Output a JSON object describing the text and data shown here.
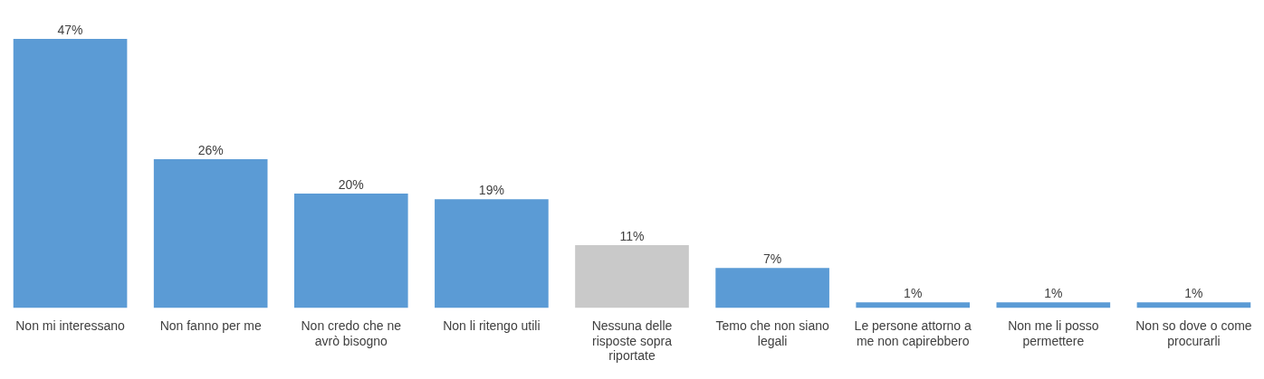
{
  "chart_data": {
    "type": "bar",
    "categories": [
      "Non mi interessano",
      "Non fanno per me",
      "Non credo che ne avrò bisogno",
      "Non li ritengo utili",
      "Nessuna delle risposte sopra riportate",
      "Temo che non siano legali",
      "Le persone attorno a me non capirebbero",
      "Non me li posso permettere",
      "Non so dove o come procurarli"
    ],
    "values": [
      47,
      26,
      20,
      19,
      11,
      7,
      1,
      1,
      1
    ],
    "colors": [
      "#5b9bd5",
      "#5b9bd5",
      "#5b9bd5",
      "#5b9bd5",
      "#c9c9c9",
      "#5b9bd5",
      "#5b9bd5",
      "#5b9bd5",
      "#5b9bd5"
    ],
    "value_labels": [
      "47%",
      "26%",
      "20%",
      "19%",
      "11%",
      "7%",
      "1%",
      "1%",
      "1%"
    ],
    "grid": false,
    "legend": false,
    "tick_labels": "x"
  }
}
